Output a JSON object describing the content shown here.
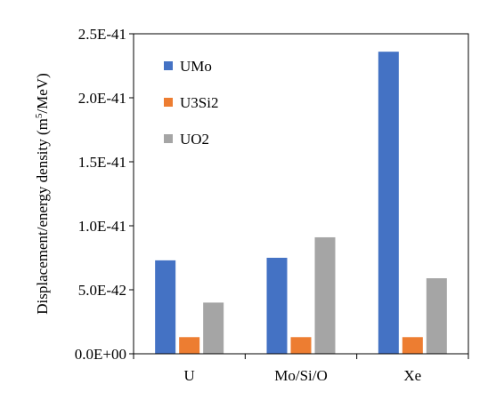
{
  "chart_data": {
    "type": "bar",
    "title": "",
    "xlabel": "",
    "ylabel": "Displacement/energy density (m",
    "ylabel_sup": "5",
    "ylabel_end": "/MeV)",
    "categories": [
      "U",
      "Mo/Si/O",
      "Xe"
    ],
    "series": [
      {
        "name": "UMo",
        "color": "#4472C4",
        "values": [
          7.3e-42,
          7.5e-42,
          2.36e-41
        ]
      },
      {
        "name": "U3Si2",
        "color": "#ED7D31",
        "values": [
          1.3e-42,
          1.3e-42,
          1.3e-42
        ]
      },
      {
        "name": "UO2",
        "color": "#A5A5A5",
        "values": [
          4e-42,
          9.1e-42,
          5.9e-42
        ]
      }
    ],
    "ylim": [
      0,
      2.5e-41
    ],
    "yticks": [
      0,
      5e-42,
      1e-41,
      1.5e-41,
      2e-41,
      2.5e-41
    ],
    "ytick_labels": [
      "0.0E+00",
      "5.0E-42",
      "1.0E-41",
      "1.5E-41",
      "2.0E-41",
      "2.5E-41"
    ],
    "grid": false,
    "legend_position": "top-left"
  }
}
